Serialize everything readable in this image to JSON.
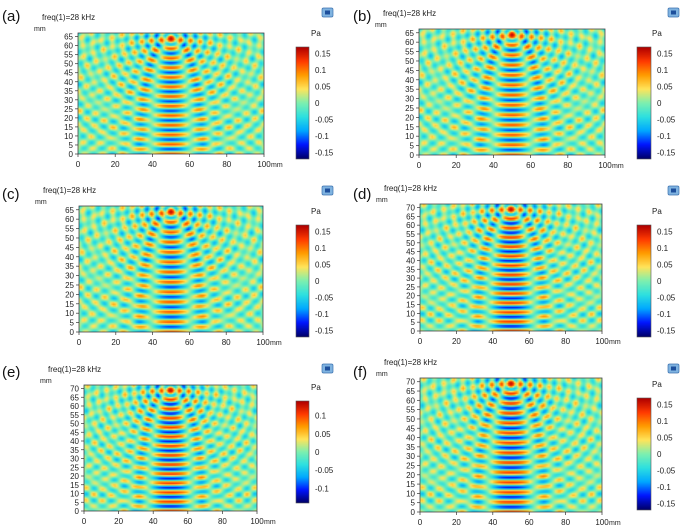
{
  "figure": {
    "unit_label": "mm",
    "colorbar_unit": "Pa"
  },
  "colormap": [
    "#00006a",
    "#0015ff",
    "#00a8ff",
    "#2de0e0",
    "#7cf0b0",
    "#ffe45a",
    "#ff9d00",
    "#ff3a00",
    "#b00000"
  ],
  "chart_data": [
    {
      "id": "a",
      "type": "heatmap",
      "panel_label": "(a)",
      "title": "freq(1)=28 kHz",
      "xlabel": "mm",
      "ylabel": "mm",
      "xlim": [
        0,
        100
      ],
      "ylim": [
        0,
        67
      ],
      "x_ticks": [
        0,
        20,
        40,
        60,
        80,
        100
      ],
      "y_ticks": [
        0,
        5,
        10,
        15,
        20,
        25,
        30,
        35,
        40,
        45,
        50,
        55,
        60,
        65
      ],
      "colorbar": {
        "label": "Pa",
        "ticks": [
          0.15,
          0.1,
          0.05,
          0,
          -0.05,
          -0.1,
          -0.15
        ],
        "range": [
          -0.17,
          0.17
        ]
      },
      "field": {
        "source_x": 50,
        "source_y": 64,
        "peak_pressure": 0.17,
        "wavelength_mm": 5.3
      }
    },
    {
      "id": "b",
      "type": "heatmap",
      "panel_label": "(b)",
      "title": "freq(1)=28 kHz",
      "xlabel": "mm",
      "ylabel": "mm",
      "xlim": [
        0,
        100
      ],
      "ylim": [
        0,
        67
      ],
      "x_ticks": [
        0,
        20,
        40,
        60,
        80,
        100
      ],
      "y_ticks": [
        0,
        5,
        10,
        15,
        20,
        25,
        30,
        35,
        40,
        45,
        50,
        55,
        60,
        65
      ],
      "colorbar": {
        "label": "Pa",
        "ticks": [
          0.15,
          0.1,
          0.05,
          0,
          -0.05,
          -0.1,
          -0.15
        ],
        "range": [
          -0.17,
          0.17
        ]
      },
      "field": {
        "source_x": 50,
        "source_y": 64,
        "peak_pressure": 0.17,
        "wavelength_mm": 5.3
      }
    },
    {
      "id": "c",
      "type": "heatmap",
      "panel_label": "(c)",
      "title": "freq(1)=28 kHz",
      "xlabel": "mm",
      "ylabel": "mm",
      "xlim": [
        0,
        100
      ],
      "ylim": [
        0,
        67
      ],
      "x_ticks": [
        0,
        20,
        40,
        60,
        80,
        100
      ],
      "y_ticks": [
        0,
        5,
        10,
        15,
        20,
        25,
        30,
        35,
        40,
        45,
        50,
        55,
        60,
        65
      ],
      "colorbar": {
        "label": "Pa",
        "ticks": [
          0.15,
          0.1,
          0.05,
          0,
          -0.05,
          -0.1,
          -0.15
        ],
        "range": [
          -0.17,
          0.17
        ]
      },
      "field": {
        "source_x": 50,
        "source_y": 64,
        "peak_pressure": 0.17,
        "wavelength_mm": 5.3
      }
    },
    {
      "id": "d",
      "type": "heatmap",
      "panel_label": "(d)",
      "title": "freq(1)=28 kHz",
      "xlabel": "mm",
      "ylabel": "mm",
      "xlim": [
        0,
        100
      ],
      "ylim": [
        0,
        72
      ],
      "x_ticks": [
        0,
        20,
        40,
        60,
        80,
        100
      ],
      "y_ticks": [
        0,
        5,
        10,
        15,
        20,
        25,
        30,
        35,
        40,
        45,
        50,
        55,
        60,
        65,
        70
      ],
      "colorbar": {
        "label": "Pa",
        "ticks": [
          0.15,
          0.1,
          0.05,
          0,
          -0.05,
          -0.1,
          -0.15
        ],
        "range": [
          -0.17,
          0.17
        ]
      },
      "field": {
        "source_x": 50,
        "source_y": 69,
        "peak_pressure": 0.17,
        "wavelength_mm": 5.3
      }
    },
    {
      "id": "e",
      "type": "heatmap",
      "panel_label": "(e)",
      "title": "freq(1)=28 kHz",
      "xlabel": "mm",
      "ylabel": "mm",
      "xlim": [
        0,
        100
      ],
      "ylim": [
        0,
        72
      ],
      "x_ticks": [
        0,
        20,
        40,
        60,
        80,
        100
      ],
      "y_ticks": [
        0,
        5,
        10,
        15,
        20,
        25,
        30,
        35,
        40,
        45,
        50,
        55,
        60,
        65,
        70
      ],
      "colorbar": {
        "label": "Pa",
        "ticks": [
          0.1,
          0.05,
          0,
          -0.05,
          -0.1
        ],
        "range": [
          -0.14,
          0.14
        ]
      },
      "field": {
        "source_x": 50,
        "source_y": 69,
        "peak_pressure": 0.14,
        "wavelength_mm": 5.3
      }
    },
    {
      "id": "f",
      "type": "heatmap",
      "panel_label": "(f)",
      "title": "freq(1)=28 kHz",
      "xlabel": "mm",
      "ylabel": "mm",
      "xlim": [
        0,
        100
      ],
      "ylim": [
        0,
        72
      ],
      "x_ticks": [
        0,
        20,
        40,
        60,
        80,
        100
      ],
      "y_ticks": [
        0,
        5,
        10,
        15,
        20,
        25,
        30,
        35,
        40,
        45,
        50,
        55,
        60,
        65,
        70
      ],
      "colorbar": {
        "label": "Pa",
        "ticks": [
          0.15,
          0.1,
          0.05,
          0,
          -0.05,
          -0.1,
          -0.15
        ],
        "range": [
          -0.17,
          0.17
        ]
      },
      "field": {
        "source_x": 50,
        "source_y": 69,
        "peak_pressure": 0.17,
        "wavelength_mm": 5.3
      }
    }
  ]
}
